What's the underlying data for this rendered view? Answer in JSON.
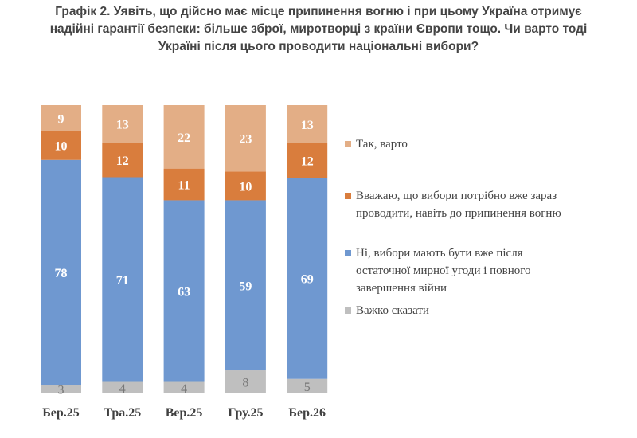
{
  "chart_data": {
    "type": "bar",
    "stacked": true,
    "title_lines": [
      "Графік 2. Уявіть, що дійсно має місце припинення вогню і при цьому Україна отримує",
      "надійні гарантії безпеки: більше зброї, миротворці з країни Європи тощо. Чи варто тоді",
      "Україні після цього проводити національні вибори?"
    ],
    "categories": [
      "Бер.25",
      "Тра.25",
      "Вер.25",
      "Гру.25",
      "Бер.26"
    ],
    "series": [
      {
        "name": "Важко сказати",
        "color": "#BFBFBF",
        "label_color": "#777777",
        "values": [
          3,
          4,
          4,
          8,
          5
        ]
      },
      {
        "name": "Ні, вибори мають бути вже після остаточної мирної угоди і повного завершення війни",
        "legend_lines": [
          "Ні, вибори мають бути вже після",
          "остаточної мирної угоди і повного",
          "завершення війни"
        ],
        "color": "#6F98D0",
        "label_color": "#FFFFFF",
        "values": [
          78,
          71,
          63,
          59,
          69
        ]
      },
      {
        "name": "Вважаю, що вибори потрібно вже зараз проводити, навіть до припинення вогню",
        "legend_lines": [
          "Вважаю, що вибори потрібно вже зараз",
          "проводити, навіть до припинення вогню"
        ],
        "color": "#D97D3D",
        "label_color": "#FFFFFF",
        "values": [
          10,
          12,
          11,
          10,
          12
        ]
      },
      {
        "name": "Так, варто",
        "color": "#E3AE86",
        "label_color": "#FFFFFF",
        "values": [
          9,
          13,
          22,
          23,
          13
        ]
      }
    ],
    "legend_order": [
      3,
      2,
      1,
      0
    ],
    "legend_placement": "right",
    "ylim": [
      0,
      100
    ],
    "grid": false
  }
}
